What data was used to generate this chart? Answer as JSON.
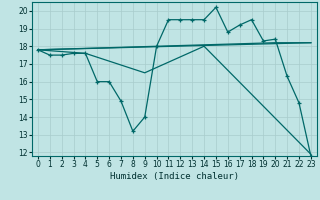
{
  "xlabel": "Humidex (Indice chaleur)",
  "bg_color": "#c0e4e4",
  "line_color": "#006868",
  "xlim": [
    -0.5,
    23.5
  ],
  "ylim": [
    11.8,
    20.5
  ],
  "yticks": [
    12,
    13,
    14,
    15,
    16,
    17,
    18,
    19,
    20
  ],
  "xticks": [
    0,
    1,
    2,
    3,
    4,
    5,
    6,
    7,
    8,
    9,
    10,
    11,
    12,
    13,
    14,
    15,
    16,
    17,
    18,
    19,
    20,
    21,
    22,
    23
  ],
  "series1_x": [
    0,
    1,
    2,
    3,
    4,
    5,
    6,
    7,
    8,
    9,
    10,
    11,
    12,
    13,
    14,
    15,
    16,
    17,
    18,
    19,
    20,
    21,
    22,
    23
  ],
  "series1_y": [
    17.8,
    17.5,
    17.5,
    17.6,
    17.6,
    16.0,
    16.0,
    14.9,
    13.2,
    14.0,
    18.0,
    19.5,
    19.5,
    19.5,
    19.5,
    20.2,
    18.8,
    19.2,
    19.5,
    18.3,
    18.4,
    16.3,
    14.8,
    11.8
  ],
  "trend1_x": [
    0,
    23
  ],
  "trend1_y": [
    17.8,
    18.2
  ],
  "trend2_x": [
    0,
    10,
    20,
    23
  ],
  "trend2_y": [
    17.8,
    18.0,
    18.2,
    18.2
  ],
  "trend3_x": [
    0,
    4,
    9,
    14,
    23
  ],
  "trend3_y": [
    17.8,
    17.6,
    16.5,
    18.0,
    11.9
  ]
}
